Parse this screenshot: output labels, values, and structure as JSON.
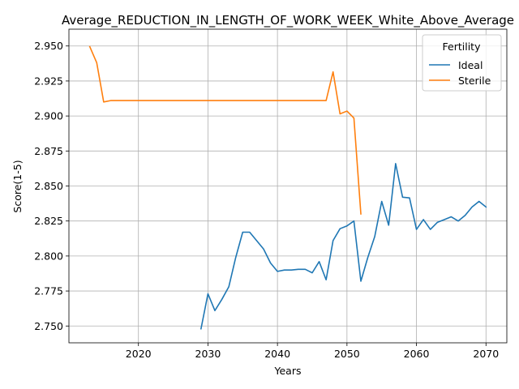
{
  "chart_data": {
    "type": "line",
    "title": "Average_REDUCTION_IN_LENGTH_OF_WORK_WEEK_White_Above_Average",
    "xlabel": "Years",
    "ylabel": "Score(1-5)",
    "xlim": [
      2010,
      2073
    ],
    "ylim": [
      2.738,
      2.962
    ],
    "xticks": [
      2020,
      2030,
      2040,
      2050,
      2060,
      2070
    ],
    "yticks": [
      2.75,
      2.775,
      2.8,
      2.825,
      2.85,
      2.875,
      2.9,
      2.925,
      2.95
    ],
    "xtick_labels": [
      "2020",
      "2030",
      "2040",
      "2050",
      "2060",
      "2070"
    ],
    "ytick_labels": [
      "2.750",
      "2.775",
      "2.800",
      "2.825",
      "2.850",
      "2.875",
      "2.900",
      "2.925",
      "2.950"
    ],
    "grid": true,
    "legend": {
      "title": "Fertility",
      "position": "top-right"
    },
    "series": [
      {
        "name": "Ideal",
        "color": "#1f77b4",
        "x": [
          2029,
          2030,
          2031,
          2032,
          2033,
          2034,
          2035,
          2036,
          2037,
          2038,
          2039,
          2040,
          2041,
          2042,
          2043,
          2044,
          2045,
          2046,
          2047,
          2048,
          2049,
          2050,
          2051,
          2052,
          2053,
          2054,
          2055,
          2056,
          2057,
          2058,
          2059,
          2060,
          2061,
          2062,
          2063,
          2064,
          2065,
          2066,
          2067,
          2068,
          2069,
          2070
        ],
        "y": [
          2.748,
          2.773,
          2.761,
          2.769,
          2.778,
          2.799,
          2.817,
          2.817,
          2.811,
          2.805,
          2.795,
          2.789,
          2.79,
          2.79,
          2.7905,
          2.7905,
          2.788,
          2.796,
          2.783,
          2.811,
          2.8195,
          2.8215,
          2.825,
          2.782,
          2.799,
          2.814,
          2.839,
          2.822,
          2.866,
          2.842,
          2.8415,
          2.819,
          2.826,
          2.819,
          2.824,
          2.826,
          2.828,
          2.825,
          2.829,
          2.835,
          2.839,
          2.835
        ]
      },
      {
        "name": "Sterile",
        "color": "#ff7f0e",
        "x": [
          2013,
          2014,
          2015,
          2016,
          2017,
          2018,
          2019,
          2020,
          2021,
          2022,
          2023,
          2024,
          2025,
          2026,
          2027,
          2028,
          2029,
          2030,
          2031,
          2032,
          2033,
          2034,
          2035,
          2036,
          2037,
          2038,
          2039,
          2040,
          2041,
          2042,
          2043,
          2044,
          2045,
          2046,
          2047,
          2048,
          2049,
          2050,
          2051,
          2052
        ],
        "y": [
          2.9495,
          2.938,
          2.91,
          2.911,
          2.911,
          2.911,
          2.911,
          2.911,
          2.911,
          2.911,
          2.911,
          2.911,
          2.911,
          2.911,
          2.911,
          2.911,
          2.911,
          2.911,
          2.911,
          2.911,
          2.911,
          2.911,
          2.911,
          2.911,
          2.911,
          2.911,
          2.911,
          2.911,
          2.911,
          2.911,
          2.911,
          2.911,
          2.911,
          2.911,
          2.911,
          2.9315,
          2.9015,
          2.9035,
          2.8985,
          2.83
        ]
      }
    ]
  }
}
